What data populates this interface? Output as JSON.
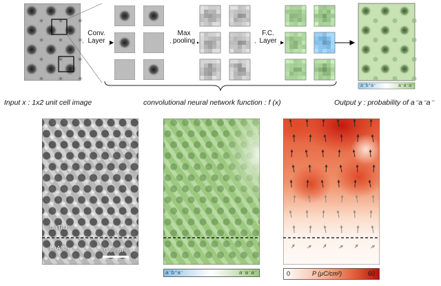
{
  "pipeline": {
    "step_labels": {
      "conv": "Conv.\nLayer",
      "pool": "Max\npooling",
      "fc": "F.C.\nLayer"
    },
    "caption_input": "Input x : 1x2 unit cell image",
    "caption_network": "convolutional neural network function : f (x)",
    "caption_output": "Output y : probability of a⁻a⁻a⁻",
    "output_colorbar": {
      "left_label": "a⁻b⁺a⁻",
      "right_label": "a⁻a⁻a⁻"
    }
  },
  "panels": {
    "stem": {
      "label_top": "CaTiO₃",
      "label_bottom": "LaAlO₃",
      "scale_bar": "0.5 nm"
    },
    "prob_colorbar": {
      "left_label": "a⁻b⁺a⁻",
      "right_label": "a⁻a⁻a⁻"
    },
    "pol_colorbar": {
      "min_label": "0",
      "title": "P (μC/cm²)",
      "max_label": "60"
    }
  },
  "colors": {
    "green": "#a8cf8c",
    "blue": "#a9cfe9",
    "red": "#c91d10",
    "white": "#ffffff"
  }
}
